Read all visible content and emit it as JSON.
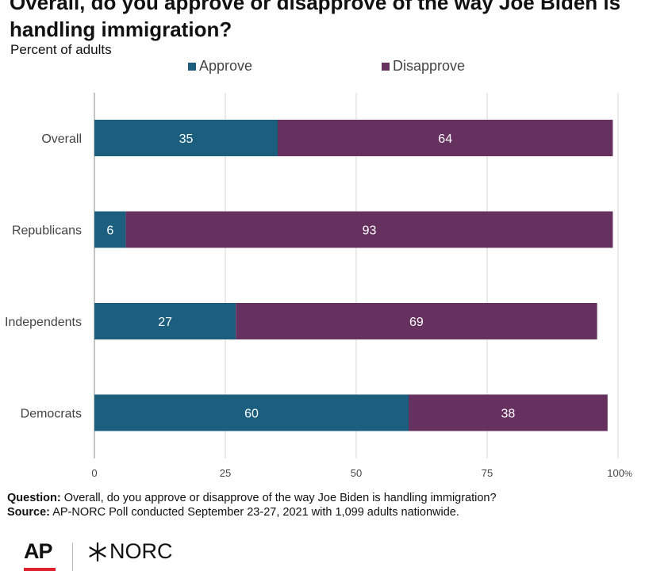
{
  "chart_data": {
    "type": "bar",
    "orientation": "horizontal",
    "stacked": true,
    "title": "Overall, do you approve or disapprove of the way Joe Biden is handling immigration?",
    "subtitle": "Percent of adults",
    "categories": [
      "Overall",
      "Republicans",
      "Independents",
      "Democrats"
    ],
    "series": [
      {
        "name": "Approve",
        "color": "#1b5e7e",
        "values": [
          35,
          6,
          27,
          60
        ]
      },
      {
        "name": "Disapprove",
        "color": "#66305f",
        "values": [
          64,
          93,
          69,
          38
        ]
      }
    ],
    "xlim": [
      0,
      100
    ],
    "xticks": [
      0,
      25,
      50,
      75,
      100
    ],
    "xtick_labels": [
      "0",
      "25",
      "50",
      "75",
      "100"
    ],
    "x_unit": "%",
    "grid": true,
    "legend_position": "top"
  },
  "footer": {
    "question_label": "Question:",
    "question_text": "Overall, do you approve or disapprove of the way Joe Biden is handling immigration?",
    "source_label": "Source:",
    "source_text": "AP-NORC Poll conducted September 23-27, 2021 with 1,099 adults nationwide."
  },
  "logos": {
    "ap": "AP",
    "norc": "NORC"
  }
}
